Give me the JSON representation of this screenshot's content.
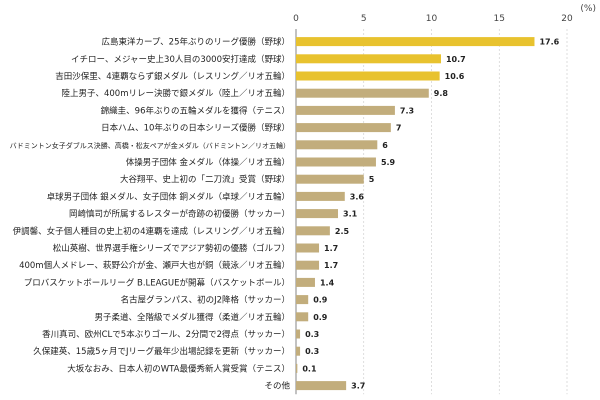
{
  "chart_data": {
    "type": "bar",
    "orientation": "horizontal",
    "unit": "(%)",
    "xlim": [
      0,
      20
    ],
    "xticks": [
      0,
      5,
      10,
      15,
      20
    ],
    "grid": true,
    "categories": [
      "広島東洋カープ、25年ぶりのリーグ優勝（野球）",
      "イチロー、メジャー史上30人目の3000安打達成（野球）",
      "吉田沙保里、4連覇ならず銀メダル（レスリング／リオ五輪）",
      "陸上男子、400mリレー決勝で銀メダル（陸上／リオ五輪）",
      "錦織圭、96年ぶりの五輪メダルを獲得（テニス）",
      "日本ハム、10年ぶりの日本シリーズ優勝（野球）",
      "バドミントン女子ダブルス決勝、高橋・松友ペアが金メダル（バドミントン／リオ五輪）",
      "体操男子団体 金メダル（体操／リオ五輪）",
      "大谷翔平、史上初の「二刀流」受賞（野球）",
      "卓球男子団体 銀メダル、女子団体 銅メダル（卓球／リオ五輪）",
      "岡崎慎司が所属するレスターが奇跡の初優勝（サッカー）",
      "伊調馨、女子個人種目の史上初の4連覇を達成（レスリング／リオ五輪）",
      "松山英樹、世界選手権シリーズでアジア勢初の優勝（ゴルフ）",
      "400m個人メドレー、萩野公介が金、瀬戸大也が銅（競泳／リオ五輪）",
      "プロバスケットボールリーグ B.LEAGUEが開幕（バスケットボール）",
      "名古屋グランパス、初のJ2降格（サッカー）",
      "男子柔道、全階級でメダル獲得（柔道／リオ五輪）",
      "香川真司、欧州CLで5本ぶりゴール、2分間で2得点（サッカー）",
      "久保建英、15歳5ヶ月でJリーグ最年少出場記録を更新（サッカー）",
      "大坂なおみ、日本人初のWTA最優秀新人賞受賞（テニス）",
      "その他"
    ],
    "values": [
      17.6,
      10.7,
      10.6,
      9.8,
      7.3,
      7,
      6,
      5.9,
      5,
      3.6,
      3.1,
      2.5,
      1.7,
      1.7,
      1.4,
      0.9,
      0.9,
      0.3,
      0.3,
      0.1,
      3.7
    ],
    "value_labels": [
      "17.6",
      "10.7",
      "10.6",
      "9.8",
      "7.3",
      "7",
      "6",
      "5.9",
      "5",
      "3.6",
      "3.1",
      "2.5",
      "1.7",
      "1.7",
      "1.4",
      "0.9",
      "0.9",
      "0.3",
      "0.3",
      "0.1",
      "3.7"
    ],
    "highlight_count": 3,
    "colors": {
      "highlight": "#e8c22e",
      "normal": "#c2ad7c"
    }
  }
}
